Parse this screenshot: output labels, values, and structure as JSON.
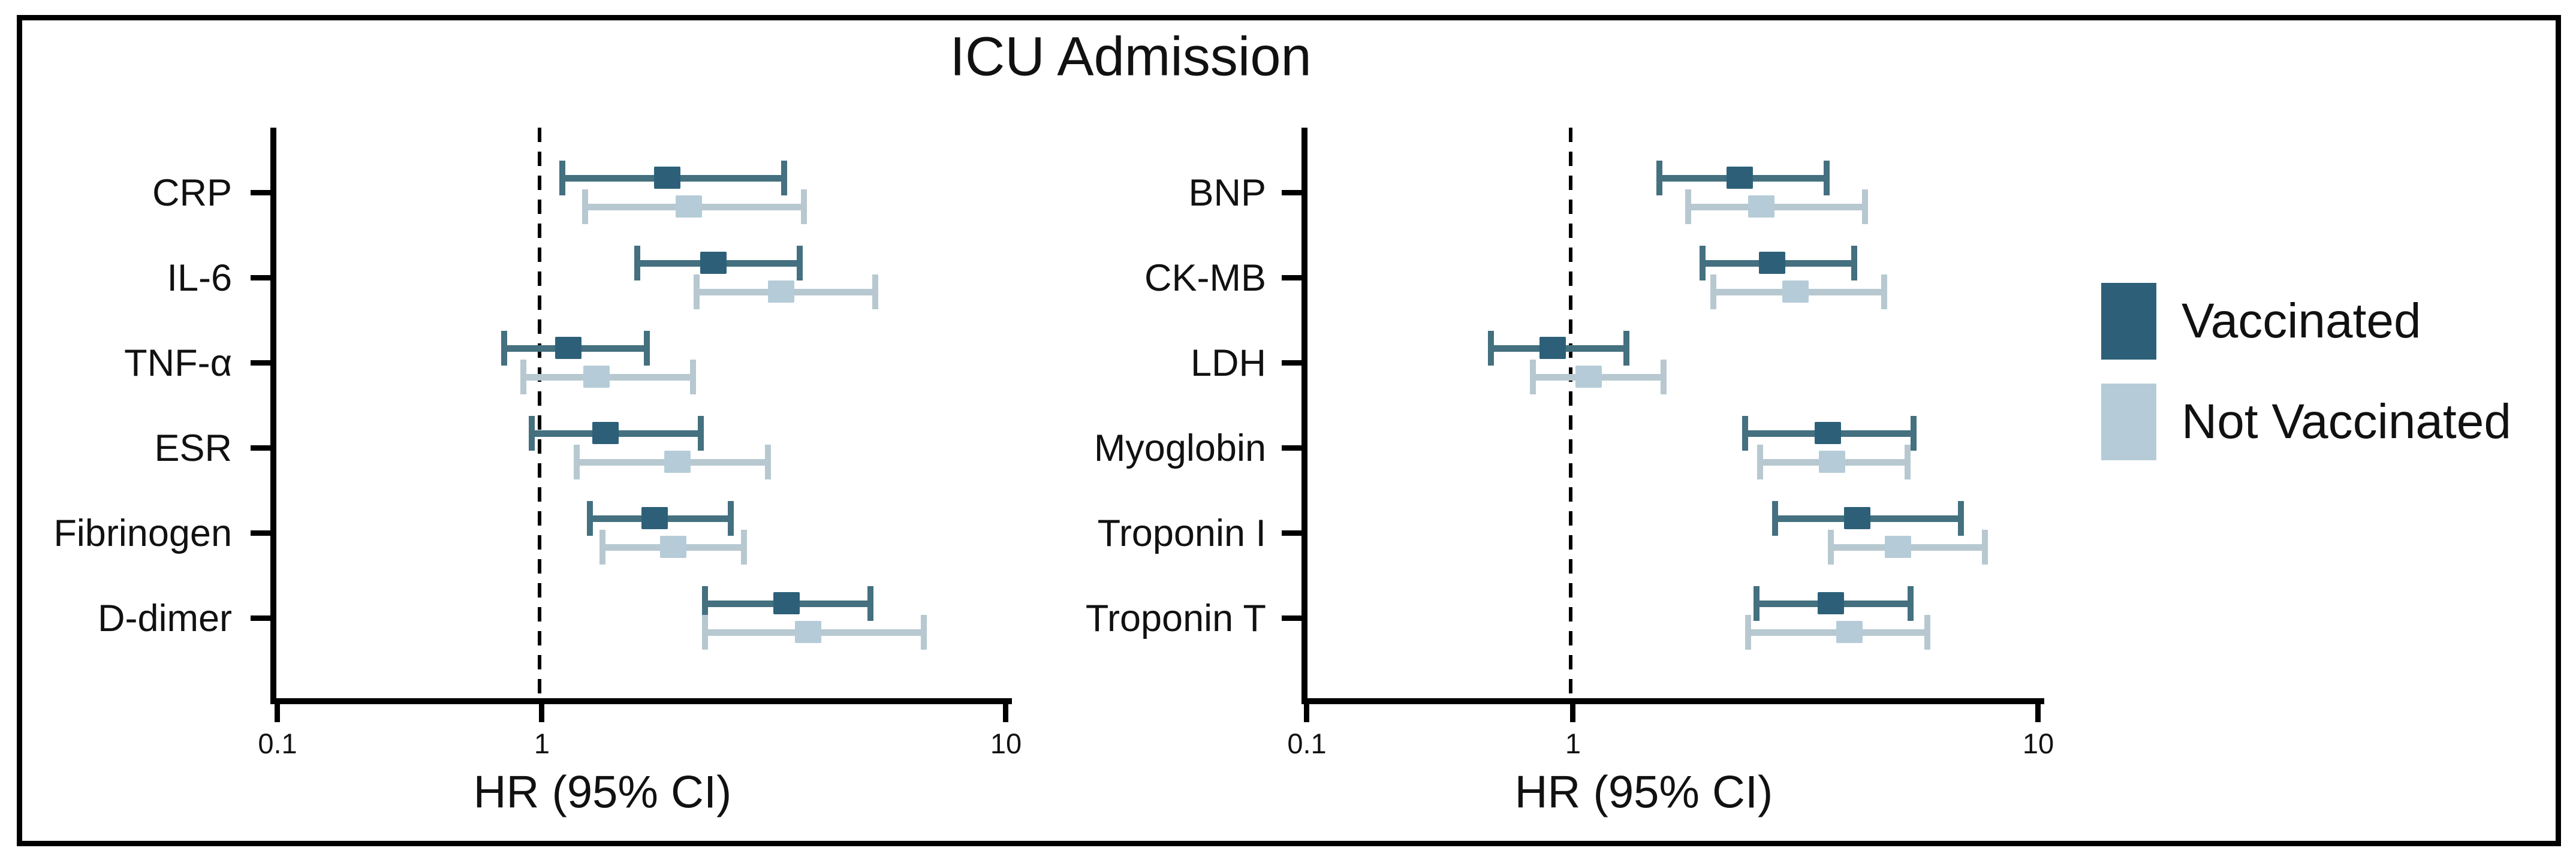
{
  "title": "ICU Admission",
  "axis": {
    "xlabel": "HR (95% CI)",
    "scale": "log",
    "xlim": [
      0.1,
      10
    ],
    "tick_labels": [
      "0.1",
      "1",
      "10"
    ],
    "reference_line": 1
  },
  "legend": {
    "items": [
      {
        "label": "Vaccinated",
        "color": "#2d6078"
      },
      {
        "label": "Not Vaccinated",
        "color": "#b5ccd8"
      }
    ]
  },
  "colors": {
    "vaccinated_marker": "#2d6078",
    "vaccinated_line": "#44707f",
    "not_vaccinated_marker": "#b5ccd8",
    "not_vaccinated_line": "#b7c8d0",
    "frame": "#000000",
    "text": "#111111"
  },
  "chart_data": {
    "type": "scatter",
    "subtype": "forest_plot",
    "title": "ICU Admission",
    "xlabel": "HR (95% CI)",
    "x_scale": "log",
    "xlim": [
      0.1,
      10
    ],
    "reference_line": 1,
    "legend_position": "right",
    "panels": [
      {
        "name": "left",
        "categories": [
          "CRP",
          "IL-6",
          "TNF-α",
          "ESR",
          "Fibrinogen",
          "D-dimer"
        ],
        "series": [
          {
            "name": "Vaccinated",
            "values": [
              {
                "hr": 1.86,
                "lo": 1.09,
                "hi": 3.38
              },
              {
                "hr": 2.34,
                "lo": 1.58,
                "hi": 3.65
              },
              {
                "hr": 1.14,
                "lo": 0.7,
                "hi": 1.71
              },
              {
                "hr": 1.37,
                "lo": 0.89,
                "hi": 2.23
              },
              {
                "hr": 1.75,
                "lo": 1.25,
                "hi": 2.59
              },
              {
                "hr": 3.37,
                "lo": 2.21,
                "hi": 5.18
              }
            ]
          },
          {
            "name": "Not Vaccinated",
            "values": [
              {
                "hr": 2.07,
                "lo": 1.22,
                "hi": 3.72
              },
              {
                "hr": 3.28,
                "lo": 2.12,
                "hi": 5.3
              },
              {
                "hr": 1.31,
                "lo": 0.83,
                "hi": 2.15
              },
              {
                "hr": 1.96,
                "lo": 1.17,
                "hi": 3.12
              },
              {
                "hr": 1.92,
                "lo": 1.33,
                "hi": 2.77
              },
              {
                "hr": 3.75,
                "lo": 2.21,
                "hi": 6.75
              }
            ]
          }
        ]
      },
      {
        "name": "right",
        "categories": [
          "BNP",
          "CK-MB",
          "LDH",
          "Myoglobin",
          "Troponin I",
          "Troponin T"
        ],
        "series": [
          {
            "name": "Vaccinated",
            "values": [
              {
                "hr": 2.28,
                "lo": 1.51,
                "hi": 3.56
              },
              {
                "hr": 2.68,
                "lo": 1.87,
                "hi": 4.08
              },
              {
                "hr": 0.84,
                "lo": 0.48,
                "hi": 1.32
              },
              {
                "hr": 3.53,
                "lo": 2.31,
                "hi": 5.47
              },
              {
                "hr": 4.08,
                "lo": 2.68,
                "hi": 6.93
              },
              {
                "hr": 3.58,
                "lo": 2.44,
                "hi": 5.4
              }
            ]
          },
          {
            "name": "Not Vaccinated",
            "values": [
              {
                "hr": 2.54,
                "lo": 1.74,
                "hi": 4.31
              },
              {
                "hr": 3.01,
                "lo": 1.97,
                "hi": 4.74
              },
              {
                "hr": 1.08,
                "lo": 0.69,
                "hi": 1.59
              },
              {
                "hr": 3.6,
                "lo": 2.49,
                "hi": 5.32
              },
              {
                "hr": 5.0,
                "lo": 3.53,
                "hi": 7.8
              },
              {
                "hr": 3.93,
                "lo": 2.34,
                "hi": 5.86
              }
            ]
          }
        ]
      }
    ]
  }
}
